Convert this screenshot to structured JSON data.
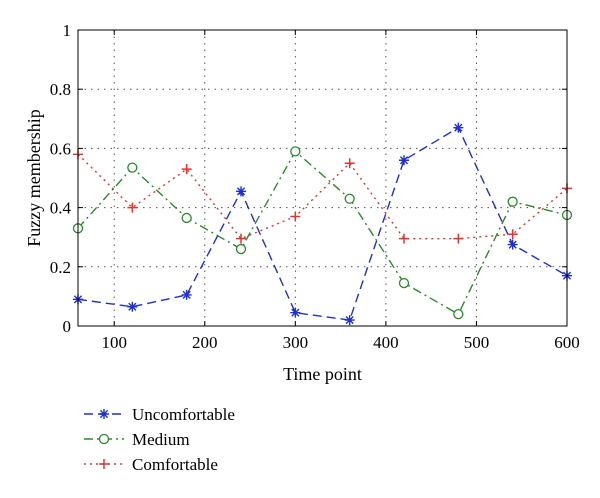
{
  "chart_data": {
    "type": "line",
    "title": "",
    "xlabel": "Time point",
    "ylabel": "Fuzzy membership",
    "xlim": [
      60,
      600
    ],
    "ylim": [
      0,
      1
    ],
    "xticks": [
      100,
      200,
      300,
      400,
      500,
      600
    ],
    "yticks": [
      0,
      0.2,
      0.4,
      0.6,
      0.8,
      1
    ],
    "ytick_labels": [
      "0",
      "0.2",
      "0.4",
      "0.6",
      "0.8",
      "1"
    ],
    "grid": true,
    "legend_position": "bottom-left",
    "x": [
      60,
      120,
      180,
      240,
      300,
      360,
      420,
      480,
      540,
      600
    ],
    "series": [
      {
        "name": "Uncomfortable",
        "color": "#1f2fd6",
        "dash": "dashed",
        "marker": "asterisk",
        "values": [
          0.09,
          0.065,
          0.105,
          0.455,
          0.045,
          0.02,
          0.56,
          0.67,
          0.275,
          0.17
        ]
      },
      {
        "name": "Medium",
        "color": "#2b8a2b",
        "dash": "dashdot",
        "marker": "circle",
        "values": [
          0.33,
          0.535,
          0.365,
          0.26,
          0.59,
          0.43,
          0.145,
          0.04,
          0.42,
          0.375
        ]
      },
      {
        "name": "Comfortable",
        "color": "#e8322d",
        "dash": "dotted",
        "marker": "plus",
        "values": [
          0.58,
          0.4,
          0.53,
          0.295,
          0.37,
          0.55,
          0.295,
          0.295,
          0.31,
          0.465
        ]
      }
    ]
  }
}
